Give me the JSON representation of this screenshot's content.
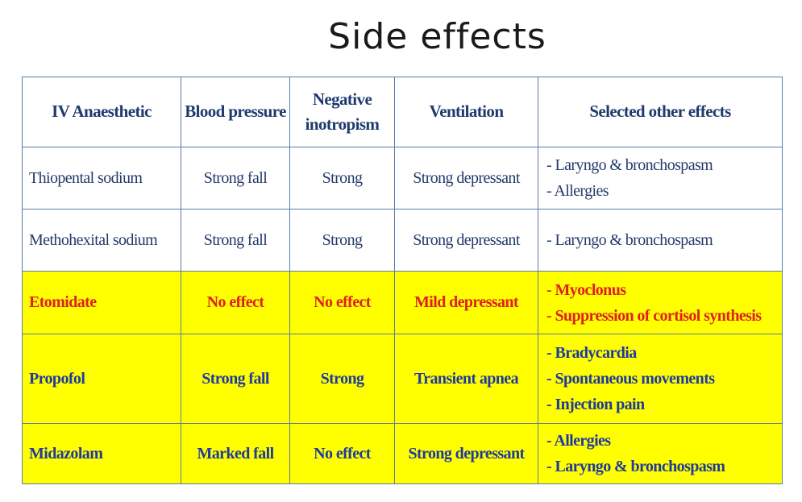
{
  "title": "Side effects",
  "table": {
    "headers": [
      "IV Anaesthetic",
      "Blood pressure",
      "Negative inotropism",
      "Ventilation",
      "Selected other effects"
    ],
    "rows": [
      {
        "name": "Thiopental sodium",
        "bp": "Strong fall",
        "ino": "Strong",
        "vent": "Strong depressant",
        "effects": [
          "- Laryngo & bronchospasm",
          "- Allergies"
        ]
      },
      {
        "name": "Methohexital sodium",
        "bp": "Strong fall",
        "ino": "Strong",
        "vent": "Strong depressant",
        "effects": [
          "- Laryngo & bronchospasm"
        ]
      },
      {
        "name": "Etomidate",
        "bp": "No effect",
        "ino": "No effect",
        "vent": "Mild depressant",
        "effects": [
          "- Myoclonus",
          "- Suppression of cortisol synthesis"
        ]
      },
      {
        "name": "Propofol",
        "bp": "Strong fall",
        "ino": "Strong",
        "vent": "Transient apnea",
        "effects": [
          "- Bradycardia",
          "- Spontaneous movements",
          "- Injection pain"
        ]
      },
      {
        "name": "Midazolam",
        "bp": "Marked fall",
        "ino": "No  effect",
        "vent": "Strong depressant",
        "effects": [
          "- Allergies",
          "- Laryngo & bronchospasm"
        ]
      }
    ]
  },
  "colors": {
    "highlight": "#ffff00",
    "red_text": "#e02020",
    "blue_text": "#1f3a9e",
    "border": "#5b7ba8"
  }
}
